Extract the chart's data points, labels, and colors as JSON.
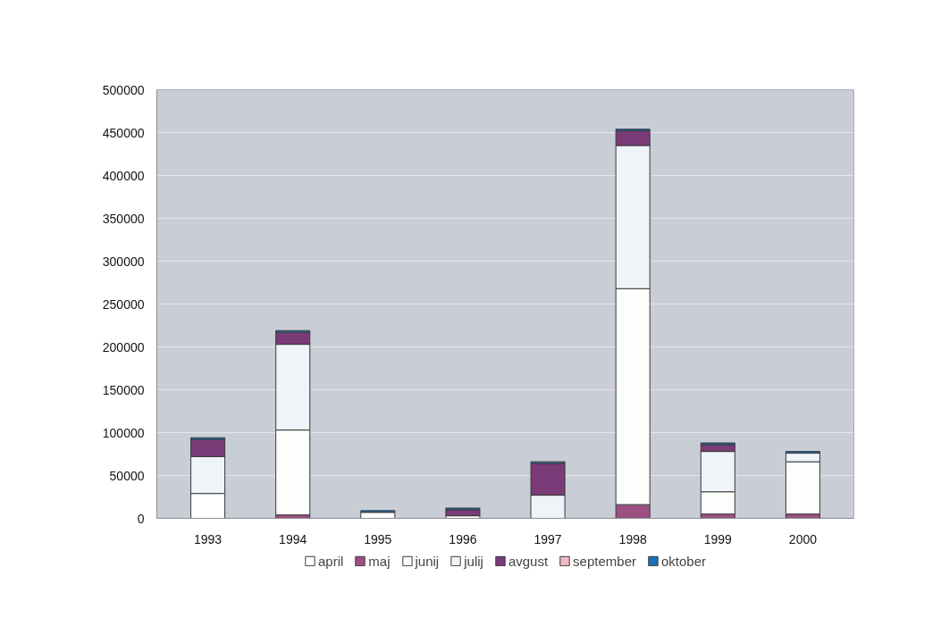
{
  "chart_data": {
    "type": "bar",
    "stacked": true,
    "categories": [
      "1993",
      "1994",
      "1995",
      "1996",
      "1997",
      "1998",
      "1999",
      "2000"
    ],
    "series": [
      {
        "name": "april",
        "color": "#ffffff",
        "values": [
          29000,
          null,
          null,
          null,
          null,
          null,
          null,
          null
        ]
      },
      {
        "name": "maj",
        "color": "#9c5080",
        "values": [
          null,
          4000,
          null,
          null,
          null,
          16000,
          5000,
          5000
        ]
      },
      {
        "name": "junij",
        "color": "#fdfdfb",
        "values": [
          null,
          99000,
          7000,
          3000,
          null,
          252000,
          26000,
          61000
        ]
      },
      {
        "name": "julij",
        "color": "#eef4f8",
        "values": [
          43000,
          100000,
          null,
          null,
          27000,
          167000,
          47000,
          10000
        ]
      },
      {
        "name": "avgust",
        "color": "#7b3a78",
        "values": [
          20000,
          14000,
          null,
          7000,
          37000,
          17000,
          8000,
          null
        ]
      },
      {
        "name": "september",
        "color": "#f0b8c0",
        "values": [
          null,
          null,
          null,
          null,
          null,
          null,
          null,
          null
        ]
      },
      {
        "name": "oktober",
        "color": "#1f6fb5",
        "values": [
          2000,
          2000,
          2000,
          2000,
          2000,
          2000,
          2000,
          2000
        ]
      }
    ],
    "ylim": [
      0,
      500000
    ],
    "yticks": [
      0,
      50000,
      100000,
      150000,
      200000,
      250000,
      300000,
      350000,
      400000,
      450000,
      500000
    ],
    "grid": "y",
    "legend": "bottom"
  }
}
